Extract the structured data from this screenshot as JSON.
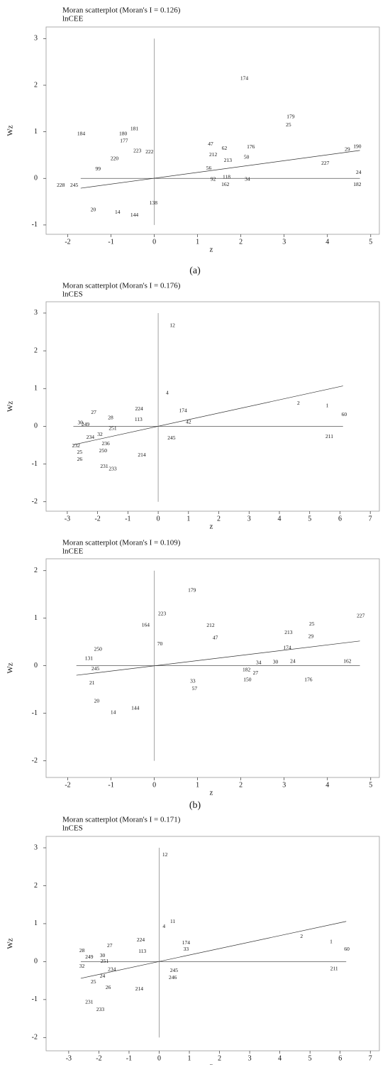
{
  "chart_data": [
    {
      "type": "scatter",
      "title": "Moran scatterplot (Moran's I = 0.126)",
      "subtitle": "lnCEE",
      "xlabel": "z",
      "ylabel": "Wz",
      "xlim": [
        -2.5,
        5.2
      ],
      "ylim": [
        -1.2,
        3.25
      ],
      "xticks": [
        -2,
        -1,
        0,
        1,
        2,
        3,
        4,
        5
      ],
      "yticks": [
        -1,
        0,
        1,
        2,
        3
      ],
      "labels": [
        "174",
        "179",
        "25",
        "190",
        "29",
        "227",
        "24",
        "182",
        "176",
        "62",
        "47",
        "50",
        "213",
        "212",
        "56",
        "118",
        "34",
        "162",
        "92",
        "184",
        "180",
        "181",
        "177",
        "228",
        "245",
        "20",
        "14",
        "144",
        "99",
        "220",
        "223",
        "222",
        "138"
      ],
      "x": [
        2.08,
        3.15,
        3.1,
        4.69,
        4.46,
        3.95,
        4.72,
        4.69,
        2.23,
        1.62,
        1.3,
        2.13,
        1.7,
        1.36,
        1.26,
        1.67,
        2.15,
        1.64,
        1.36,
        -1.69,
        -0.72,
        -0.46,
        -0.7,
        -2.16,
        -1.85,
        -1.41,
        -0.85,
        -0.46,
        -1.3,
        -0.92,
        -0.39,
        -0.11,
        -0.02
      ],
      "y": [
        2.14,
        1.32,
        1.14,
        0.68,
        0.62,
        0.32,
        0.12,
        -0.14,
        0.67,
        0.64,
        0.73,
        0.45,
        0.38,
        0.5,
        0.21,
        0.02,
        -0.02,
        -0.14,
        -0.02,
        0.95,
        0.95,
        1.06,
        0.8,
        -0.15,
        -0.15,
        -0.68,
        -0.73,
        -0.79,
        0.2,
        0.42,
        0.59,
        0.56,
        -0.53
      ],
      "fit_line": {
        "x": [
          -1.7,
          4.75
        ],
        "y": [
          -0.21,
          0.6
        ]
      }
    },
    {
      "type": "scatter",
      "title": "Moran scatterplot (Moran's I = 0.176)",
      "subtitle": "lnCES",
      "xlabel": "z",
      "ylabel": "Wz",
      "xlim": [
        -3.7,
        7.3
      ],
      "ylim": [
        -2.25,
        3.3
      ],
      "xticks": [
        -3,
        -2,
        -1,
        0,
        1,
        2,
        3,
        4,
        5,
        6,
        7
      ],
      "yticks": [
        -2,
        -1,
        0,
        1,
        2,
        3
      ],
      "labels": [
        "12",
        "2",
        "1",
        "60",
        "211",
        "224",
        "27",
        "28",
        "30",
        "249",
        "251",
        "32",
        "234",
        "232",
        "25",
        "26",
        "231",
        "233",
        "214",
        "250",
        "236",
        "245",
        "113",
        "174",
        "42",
        "4"
      ],
      "x": [
        0.47,
        4.63,
        5.58,
        6.14,
        5.65,
        -0.63,
        -2.13,
        -1.57,
        -2.57,
        -2.4,
        -1.5,
        -1.92,
        -2.24,
        -2.71,
        -2.59,
        -2.59,
        -1.78,
        -1.5,
        -0.54,
        -1.82,
        -1.73,
        0.44,
        -0.65,
        0.82,
        1.0,
        0.3
      ],
      "y": [
        2.66,
        0.6,
        0.54,
        0.3,
        -0.28,
        0.45,
        0.36,
        0.22,
        0.09,
        0.04,
        -0.06,
        -0.22,
        -0.3,
        -0.52,
        -0.69,
        -0.88,
        -1.07,
        -1.14,
        -0.77,
        -0.66,
        -0.47,
        -0.32,
        0.17,
        0.41,
        0.11,
        0.88
      ],
      "fit_line": {
        "x": [
          -2.8,
          6.1
        ],
        "y": [
          -0.49,
          1.07
        ]
      }
    },
    {
      "type": "scatter",
      "title": "Moran scatterplot (Moran's I = 0.109)",
      "subtitle": "lnCEE",
      "xlabel": "z",
      "ylabel": "Wz",
      "xlim": [
        -2.5,
        5.2
      ],
      "ylim": [
        -2.35,
        2.25
      ],
      "xticks": [
        -2,
        -1,
        0,
        1,
        2,
        3,
        4,
        5
      ],
      "yticks": [
        -2,
        -1,
        0,
        1,
        2
      ],
      "labels": [
        "179",
        "223",
        "164",
        "212",
        "25",
        "213",
        "29",
        "227",
        "174",
        "162",
        "24",
        "30",
        "34",
        "176",
        "150",
        "27",
        "182",
        "57",
        "33",
        "250",
        "131",
        "245",
        "20",
        "14",
        "144",
        "21",
        "47",
        "70"
      ],
      "x": [
        0.87,
        0.18,
        -0.2,
        1.3,
        3.64,
        3.1,
        3.62,
        4.77,
        3.07,
        4.46,
        3.2,
        2.8,
        2.41,
        3.56,
        2.15,
        2.34,
        2.13,
        0.93,
        0.89,
        -1.3,
        -1.51,
        -1.36,
        -1.33,
        -0.95,
        -0.44,
        -1.44,
        1.41,
        0.13
      ],
      "y": [
        1.58,
        1.09,
        0.85,
        0.84,
        0.87,
        0.69,
        0.61,
        1.04,
        0.37,
        0.09,
        0.09,
        0.07,
        0.06,
        -0.3,
        -0.3,
        -0.16,
        -0.09,
        -0.49,
        -0.33,
        0.34,
        0.15,
        -0.07,
        -0.75,
        -0.99,
        -0.9,
        -0.37,
        0.58,
        0.45
      ],
      "fit_line": {
        "x": [
          -1.8,
          4.75
        ],
        "y": [
          -0.2,
          0.52
        ]
      }
    },
    {
      "type": "scatter",
      "title": "Moran scatterplot (Moran's I = 0.171)",
      "subtitle": "lnCES",
      "xlabel": "z",
      "ylabel": "Wz",
      "xlim": [
        -3.75,
        7.3
      ],
      "ylim": [
        -2.35,
        3.3
      ],
      "xticks": [
        -3,
        -2,
        -1,
        0,
        1,
        2,
        3,
        4,
        5,
        6,
        7
      ],
      "yticks": [
        -2,
        -1,
        0,
        1,
        2,
        3
      ],
      "labels": [
        "12",
        "2",
        "1",
        "60",
        "211",
        "224",
        "113",
        "27",
        "28",
        "249",
        "30",
        "251",
        "32",
        "234",
        "24",
        "25",
        "26",
        "231",
        "233",
        "214",
        "11",
        "4",
        "245",
        "246",
        "33",
        "174"
      ],
      "x": [
        0.19,
        4.72,
        5.7,
        6.22,
        5.8,
        -0.61,
        -0.56,
        -1.64,
        -2.56,
        -2.32,
        -1.88,
        -1.81,
        -2.56,
        -1.57,
        -1.88,
        -2.18,
        -1.69,
        -2.32,
        -1.95,
        -0.66,
        0.45,
        0.16,
        0.49,
        0.45,
        0.89,
        0.89
      ],
      "y": [
        2.81,
        0.66,
        0.52,
        0.32,
        -0.19,
        0.56,
        0.26,
        0.41,
        0.28,
        0.11,
        0.15,
        0,
        -0.13,
        -0.21,
        -0.39,
        -0.54,
        -0.69,
        -1.07,
        -1.27,
        -0.73,
        1.05,
        0.92,
        -0.24,
        -0.43,
        0.32,
        0.49
      ],
      "fit_line": {
        "x": [
          -2.6,
          6.2
        ],
        "y": [
          -0.44,
          1.06
        ]
      }
    }
  ],
  "captions": [
    "(a)",
    "(b)"
  ]
}
